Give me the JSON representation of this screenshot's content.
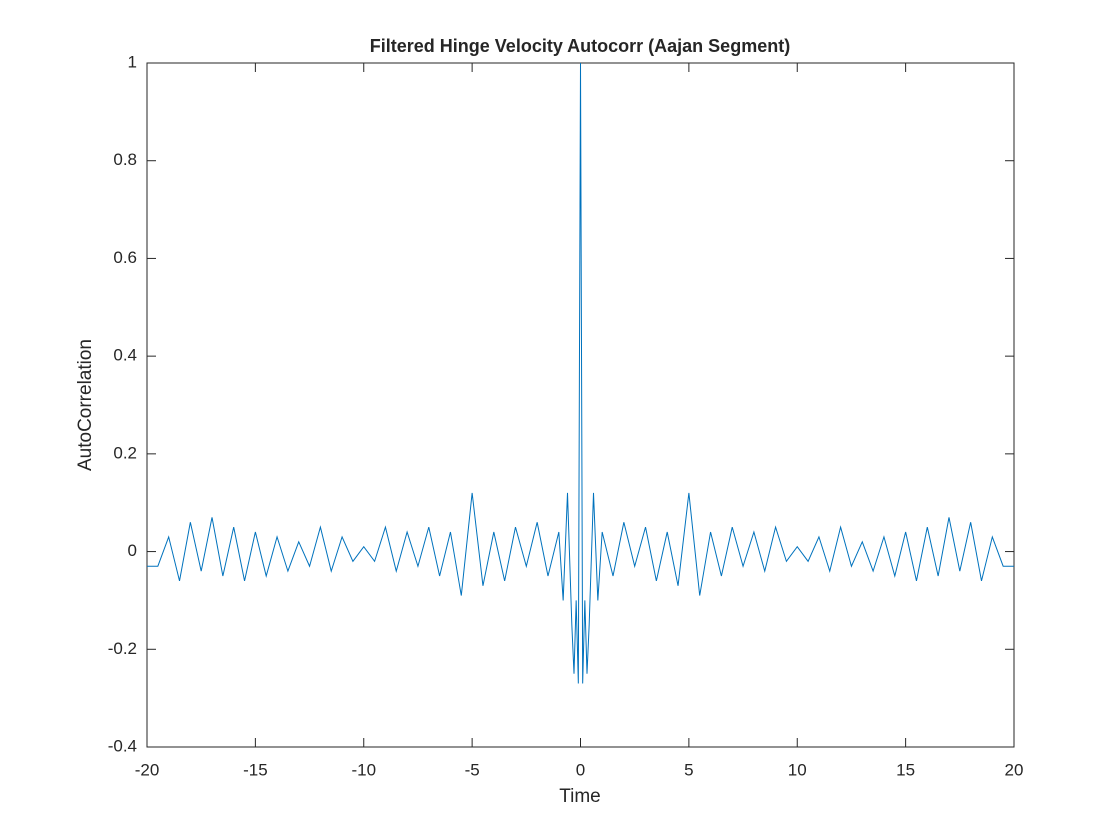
{
  "chart_data": {
    "type": "line",
    "title": "Filtered Hinge Velocity Autocorr (Aajan Segment)",
    "x_label": "Time",
    "y_label": "AutoCorrelation",
    "x": [
      -20,
      -19.5,
      -19,
      -18.5,
      -18,
      -17.5,
      -17,
      -16.5,
      -16,
      -15.5,
      -15,
      -14.5,
      -14,
      -13.5,
      -13,
      -12.5,
      -12,
      -11.5,
      -11,
      -10.5,
      -10,
      -9.5,
      -9,
      -8.5,
      -8,
      -7.5,
      -7,
      -6.5,
      -6,
      -5.5,
      -5,
      -4.5,
      -4,
      -3.5,
      -3,
      -2.5,
      -2,
      -1.5,
      -1,
      -0.8,
      -0.6,
      -0.4,
      -0.3,
      -0.2,
      -0.1,
      0,
      0.1,
      0.2,
      0.3,
      0.4,
      0.6,
      0.8,
      1,
      1.5,
      2,
      2.5,
      3,
      3.5,
      4,
      4.5,
      5,
      5.5,
      6,
      6.5,
      7,
      7.5,
      8,
      8.5,
      9,
      9.5,
      10,
      10.5,
      11,
      11.5,
      12,
      12.5,
      13,
      13.5,
      14,
      14.5,
      15,
      15.5,
      16,
      16.5,
      17,
      17.5,
      18,
      18.5,
      19,
      19.5,
      20
    ],
    "values": [
      -0.03,
      -0.03,
      0.03,
      -0.06,
      0.06,
      -0.04,
      0.07,
      -0.05,
      0.05,
      -0.06,
      0.04,
      -0.05,
      0.03,
      -0.04,
      0.02,
      -0.03,
      0.05,
      -0.04,
      0.03,
      -0.02,
      0.01,
      -0.02,
      0.05,
      -0.04,
      0.04,
      -0.03,
      0.05,
      -0.05,
      0.04,
      -0.09,
      0.12,
      -0.07,
      0.04,
      -0.06,
      0.05,
      -0.03,
      0.06,
      -0.05,
      0.04,
      -0.1,
      0.12,
      -0.15,
      -0.25,
      -0.1,
      -0.27,
      1,
      -0.27,
      -0.1,
      -0.25,
      -0.15,
      0.12,
      -0.1,
      0.04,
      -0.05,
      0.06,
      -0.03,
      0.05,
      -0.06,
      0.04,
      -0.07,
      0.12,
      -0.09,
      0.04,
      -0.05,
      0.05,
      -0.03,
      0.04,
      -0.04,
      0.05,
      -0.02,
      0.01,
      -0.02,
      0.03,
      -0.04,
      0.05,
      -0.03,
      0.02,
      -0.04,
      0.03,
      -0.05,
      0.04,
      -0.06,
      0.05,
      -0.05,
      0.07,
      -0.04,
      0.06,
      -0.06,
      0.03,
      -0.03,
      -0.03
    ],
    "color": "#0072bd",
    "xlim": [
      -20,
      20
    ],
    "xticks": [
      -20,
      -15,
      -10,
      -5,
      0,
      5,
      10,
      15,
      20
    ],
    "ylim": [
      -0.4,
      1
    ],
    "yticks": [
      -0.4,
      -0.2,
      0,
      0.2,
      0.4,
      0.6,
      0.8,
      1
    ],
    "grid": false
  }
}
